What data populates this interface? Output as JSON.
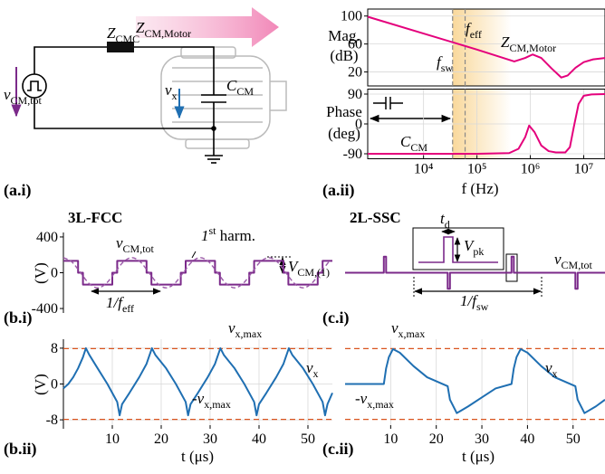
{
  "diagram": {
    "labels": [
      {
        "text": "Z",
        "sub": "CM,Motor",
        "color": "#e4007c"
      },
      {
        "text": "Z",
        "sub": "CMC",
        "color": "#000000"
      },
      {
        "text": "v",
        "sub": "CM,tot",
        "color": "#7b2a8a"
      },
      {
        "text": "v",
        "sub": "x",
        "color": "#1f6fb2"
      },
      {
        "text": "C",
        "sub": "CM",
        "color": "#000000"
      }
    ]
  },
  "panel_labels": [
    "(a.i)",
    "(a.ii)",
    "(b.i)",
    "(b.ii)",
    "(c.i)",
    "(c.ii)"
  ],
  "chart_data": [
    {
      "type": "line",
      "xlog": true,
      "y_label": [
        "Mag.",
        "(dB)"
      ],
      "xlim": [
        900,
        25000000
      ],
      "ylim": [
        0,
        110
      ],
      "yticks": [
        20,
        60,
        100
      ],
      "grid": true,
      "vlines": [
        35000,
        60000
      ],
      "band": [
        35000,
        440000
      ],
      "series": [
        {
          "color": "#e4007c",
          "x": [
            900,
            10000,
            100000,
            500000,
            800000,
            1100000,
            1600000,
            2500000,
            3800000,
            5000000,
            7000000,
            10000000,
            15000000,
            25000000
          ],
          "values": [
            99,
            75,
            52,
            35,
            40,
            45,
            40,
            25,
            12,
            15,
            26,
            34,
            38,
            40
          ]
        }
      ],
      "annotations": [
        {
          "text": "f",
          "sub": "eff",
          "color": "#000000"
        },
        {
          "text": "f",
          "sub": "sw",
          "color": "#000000"
        },
        {
          "text": "Z",
          "sub": "CM,Motor",
          "color": "#e4007c"
        }
      ]
    },
    {
      "type": "line",
      "xlog": true,
      "y_label": [
        "Phase",
        "(deg)"
      ],
      "x_label": "f (Hz)",
      "xlim": [
        900,
        25000000
      ],
      "ylim": [
        -105,
        105
      ],
      "yticks": [
        -90,
        0,
        90
      ],
      "grid": true,
      "xticks": [
        {
          "value": 10000,
          "label": "10⁴"
        },
        {
          "value": 100000,
          "label": "10⁵"
        },
        {
          "value": 1000000,
          "label": "10⁶"
        },
        {
          "value": 10000000,
          "label": "10⁷"
        }
      ],
      "vlines": [
        35000,
        60000
      ],
      "band": [
        35000,
        440000
      ],
      "series": [
        {
          "color": "#e4007c",
          "x": [
            900,
            100000,
            400000,
            600000,
            800000,
            950000,
            1200000,
            1600000,
            2200000,
            3000000,
            4500000,
            5500000,
            6500000,
            8000000,
            10000000,
            14000000,
            25000000
          ],
          "values": [
            -90,
            -90,
            -88,
            -75,
            -40,
            -5,
            -25,
            -65,
            -82,
            -86,
            -86,
            -70,
            -10,
            60,
            85,
            89,
            90
          ]
        }
      ],
      "annotations": [
        {
          "text": "C",
          "sub": "CM",
          "color": "#000000"
        }
      ]
    },
    {
      "type": "line",
      "title": "3L-FCC",
      "y_label": [
        "(V)"
      ],
      "xlim": [
        0,
        55
      ],
      "ylim": [
        -450,
        450
      ],
      "yticks": [
        -400,
        0,
        400
      ],
      "series": [
        {
          "color": "#7b2a8a",
          "style": "solid",
          "x": [
            0,
            3,
            3,
            4,
            4,
            10,
            10,
            11,
            11,
            17,
            17,
            18,
            18,
            24,
            24,
            25,
            25,
            31,
            31,
            32,
            32,
            38,
            38,
            39,
            39,
            45,
            45,
            46,
            46,
            52,
            52,
            53,
            53,
            55
          ],
          "values": [
            133,
            133,
            0,
            0,
            -133,
            -133,
            0,
            0,
            133,
            133,
            0,
            0,
            -133,
            -133,
            0,
            0,
            133,
            133,
            0,
            0,
            -133,
            -133,
            0,
            0,
            133,
            133,
            0,
            0,
            -133,
            -133,
            0,
            0,
            133,
            133
          ]
        },
        {
          "color": "#9b5aa8",
          "style": "dashed",
          "x": [
            0,
            1.75,
            3.5,
            5.25,
            7,
            8.75,
            10.5,
            12.25,
            14,
            15.75,
            17.5,
            19.25,
            21,
            22.75,
            24.5,
            26.25,
            28,
            29.75,
            31.5,
            33.25,
            35,
            36.75,
            38.5,
            40.25,
            42,
            43.75,
            45.5,
            47.25,
            49,
            50.75,
            52.5,
            54.25
          ],
          "values": [
            169,
            120,
            0,
            -120,
            -169,
            -120,
            0,
            120,
            169,
            120,
            0,
            -120,
            -169,
            -120,
            0,
            120,
            169,
            120,
            0,
            -120,
            -169,
            -120,
            0,
            120,
            169,
            120,
            0,
            -120,
            -169,
            -120,
            0,
            120
          ]
        }
      ],
      "annotations": [
        {
          "text": "v",
          "sub": "CM,tot",
          "color": "#7b2a8a"
        },
        {
          "text": "1",
          "sup": "st",
          "rest": " harm.",
          "color": "#000000"
        },
        {
          "text": "V",
          "sub": "CM,(1)",
          "color": "#000000"
        },
        {
          "text": "1/f",
          "sub": "eff",
          "color": "#000000"
        }
      ]
    },
    {
      "type": "line",
      "y_label": [
        "(V)"
      ],
      "x_label": "t (μs)",
      "xlim": [
        0,
        55
      ],
      "ylim": [
        -10,
        10
      ],
      "yticks": [
        -8,
        0,
        8
      ],
      "xticks": [
        10,
        20,
        30,
        40,
        50
      ],
      "grid": true,
      "hlines": [
        7.9,
        -7.9
      ],
      "hline_color": "#d9541e",
      "series": [
        {
          "color": "#1f6fb2",
          "style": "solid",
          "x": [
            0,
            1,
            2,
            3,
            4,
            4.6,
            5.3,
            7,
            9,
            11,
            11.5,
            12,
            13.5,
            15.5,
            17,
            18.1,
            18.8,
            21,
            23,
            25,
            25.5,
            26,
            27.5,
            29.5,
            31,
            32.1,
            32.8,
            35,
            37,
            39,
            39.5,
            40,
            41.5,
            43.5,
            45,
            46.1,
            46.8,
            49,
            51,
            53,
            53.5,
            54,
            55
          ],
          "values": [
            -1,
            0,
            1.5,
            3.5,
            6,
            8,
            6.5,
            3.5,
            0,
            -4,
            -7,
            -4.5,
            -2,
            1.5,
            4.5,
            8,
            6.5,
            3.5,
            0,
            -4,
            -7,
            -4.5,
            -2,
            1.5,
            4.5,
            8,
            6.5,
            3.5,
            0,
            -4,
            -7,
            -4.5,
            -2,
            1.5,
            4.5,
            8,
            6.5,
            3.5,
            0,
            -4,
            -7,
            -4.5,
            -2
          ]
        }
      ],
      "annotations": [
        {
          "text": "v",
          "sub": "x,max",
          "color": "#c8502a"
        },
        {
          "text": "-v",
          "sub": "x,max",
          "color": "#c8502a"
        },
        {
          "text": "v",
          "sub": "x",
          "color": "#1f6fb2"
        }
      ]
    },
    {
      "type": "line",
      "title": "2L-SSC",
      "xlim": [
        0,
        57
      ],
      "ylim": [
        -450,
        450
      ],
      "series": [
        {
          "color": "#7b2a8a",
          "style": "solid",
          "x": [
            0,
            8.5,
            8.5,
            9,
            9,
            22.5,
            22.5,
            23,
            23,
            36.5,
            36.5,
            37,
            37,
            50.5,
            50.5,
            51,
            51,
            57
          ],
          "values": [
            0,
            0,
            180,
            180,
            0,
            0,
            -180,
            -180,
            0,
            0,
            180,
            180,
            0,
            0,
            -180,
            -180,
            0,
            0
          ]
        }
      ],
      "annotations": [
        {
          "text": "t",
          "sub": "d",
          "color": "#000000"
        },
        {
          "text": "V",
          "sub": "pk",
          "color": "#000000"
        },
        {
          "text": "v",
          "sub": "CM,tot",
          "color": "#7b2a8a"
        },
        {
          "text": "1/f",
          "sub": "sw",
          "color": "#000000"
        }
      ]
    },
    {
      "type": "line",
      "x_label": "t (μs)",
      "xlim": [
        0,
        57
      ],
      "ylim": [
        -10,
        10
      ],
      "xticks": [
        10,
        20,
        30,
        40,
        50
      ],
      "grid": true,
      "hlines": [
        7.9,
        -7.9
      ],
      "hline_color": "#d9541e",
      "series": [
        {
          "color": "#1f6fb2",
          "style": "solid",
          "x": [
            0,
            8.5,
            9,
            9.6,
            10.5,
            12,
            15,
            18,
            22.5,
            23,
            24.5,
            27,
            30,
            33,
            36.5,
            37,
            37.6,
            38.5,
            40,
            43,
            46,
            50.5,
            51,
            52.5,
            55,
            57
          ],
          "values": [
            0,
            0,
            3.5,
            6,
            7.8,
            7,
            4,
            1.5,
            -0.5,
            -3.5,
            -6.5,
            -5,
            -3,
            -1,
            0,
            3.5,
            6,
            7.8,
            7,
            4,
            1.5,
            -0.5,
            -3.5,
            -6.5,
            -5,
            -3.5
          ]
        }
      ],
      "annotations": [
        {
          "text": "v",
          "sub": "x,max",
          "color": "#c8502a"
        },
        {
          "text": "-v",
          "sub": "x,max",
          "color": "#c8502a"
        },
        {
          "text": "v",
          "sub": "x",
          "color": "#1f6fb2"
        }
      ]
    }
  ]
}
